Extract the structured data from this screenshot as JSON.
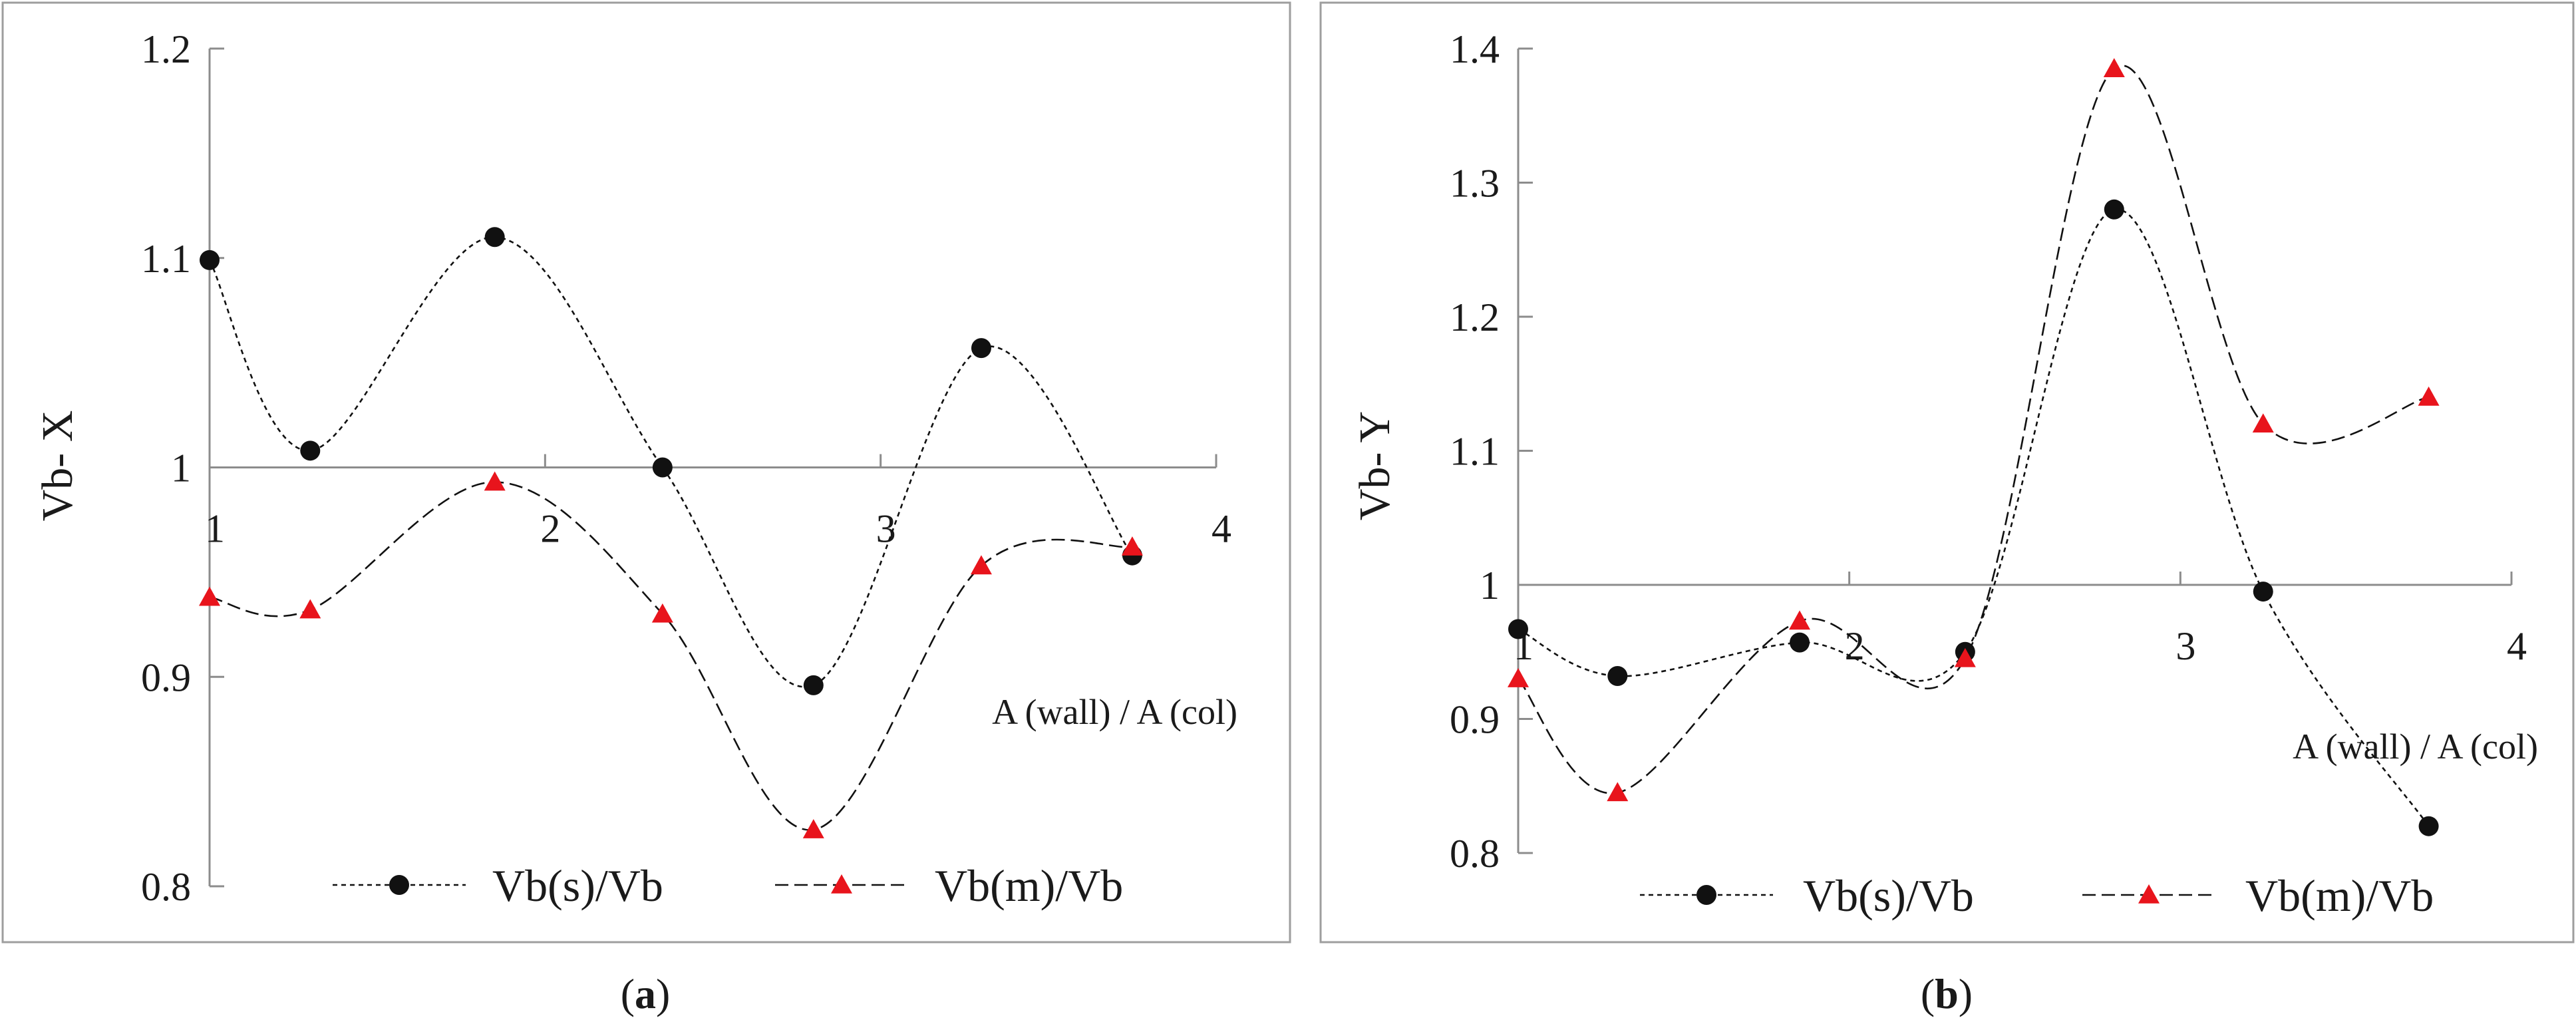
{
  "chart_data": [
    {
      "panel_label": "a",
      "type": "line",
      "ylabel": "Vb- X",
      "xlabel": "A (wall) / A (col)",
      "xlim": [
        1,
        4
      ],
      "ylim": [
        0.8,
        1.2
      ],
      "x_crosses_at": 1.0,
      "x_ticks": [
        "1",
        "2",
        "3",
        "4"
      ],
      "y_ticks": [
        "0.8",
        "0.9",
        "1",
        "1.1",
        "1.2"
      ],
      "series": [
        {
          "name": "Vb(s)/Vb",
          "marker": "circle",
          "line": "dotted",
          "x": [
            1.0,
            1.3,
            1.85,
            2.35,
            2.8,
            3.3,
            3.75
          ],
          "y": [
            1.099,
            1.008,
            1.11,
            1.0,
            0.896,
            1.057,
            0.958
          ]
        },
        {
          "name": "Vb(m)/Vb",
          "marker": "triangle",
          "line": "dashed",
          "color": "#e8141c",
          "x": [
            1.0,
            1.3,
            1.85,
            2.35,
            2.8,
            3.3,
            3.75
          ],
          "y": [
            0.938,
            0.932,
            0.993,
            0.93,
            0.827,
            0.953,
            0.962
          ]
        }
      ],
      "legend_position": "bottom"
    },
    {
      "panel_label": "b",
      "type": "line",
      "ylabel": "Vb- Y",
      "xlabel": "A (wall) / A (col)",
      "xlim": [
        1,
        4
      ],
      "ylim": [
        0.8,
        1.4
      ],
      "x_crosses_at": 1.0,
      "x_ticks": [
        "1",
        "2",
        "3",
        "4"
      ],
      "y_ticks": [
        "0.8",
        "0.9",
        "1",
        "1.1",
        "1.2",
        "1.3",
        "1.4"
      ],
      "series": [
        {
          "name": "Vb(s)/Vb",
          "marker": "circle",
          "line": "dotted",
          "x": [
            1.0,
            1.3,
            1.85,
            2.35,
            2.8,
            3.25,
            3.75
          ],
          "y": [
            0.967,
            0.932,
            0.957,
            0.95,
            1.28,
            0.995,
            0.82
          ]
        },
        {
          "name": "Vb(m)/Vb",
          "marker": "triangle",
          "line": "dashed",
          "color": "#e8141c",
          "x": [
            1.0,
            1.3,
            1.85,
            2.35,
            2.8,
            3.25,
            3.75
          ],
          "y": [
            0.93,
            0.845,
            0.973,
            0.945,
            1.385,
            1.12,
            1.14
          ]
        }
      ],
      "legend_position": "bottom"
    }
  ]
}
